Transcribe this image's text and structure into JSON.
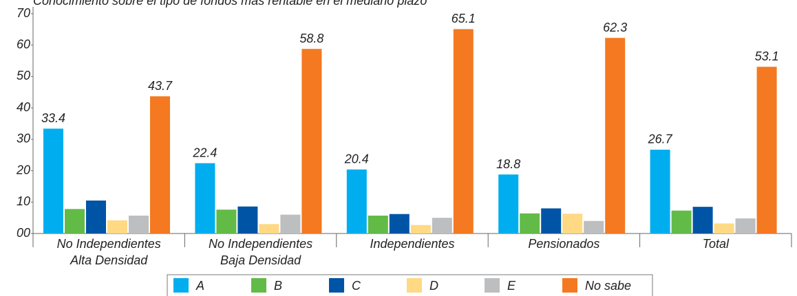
{
  "chart_data": {
    "type": "bar",
    "title": "Conocimiento sobre el tipo de fondos más rentable en el mediano plazo",
    "categories": [
      "No Independientes\nAlta Densidad",
      "No Independientes\nBaja Densidad",
      "Independientes",
      "Pensionados",
      "Total"
    ],
    "series": [
      {
        "name": "A",
        "color": "#00aeef",
        "values": [
          33.4,
          22.4,
          20.4,
          18.8,
          26.7
        ],
        "data_labels": true
      },
      {
        "name": "B",
        "color": "#62bb46",
        "values": [
          7.8,
          7.6,
          5.7,
          6.4,
          7.3
        ]
      },
      {
        "name": "C",
        "color": "#0054a6",
        "values": [
          10.5,
          8.6,
          6.2,
          8.0,
          8.5
        ]
      },
      {
        "name": "D",
        "color": "#ffd983",
        "values": [
          4.2,
          3.0,
          2.7,
          6.3,
          3.2
        ]
      },
      {
        "name": "E",
        "color": "#bcbec0",
        "values": [
          5.7,
          6.0,
          5.0,
          4.0,
          4.8
        ]
      },
      {
        "name": "No sabe",
        "color": "#f47920",
        "values": [
          43.7,
          58.8,
          65.1,
          62.3,
          53.1
        ],
        "data_labels": true
      }
    ],
    "ylim": [
      0,
      70
    ],
    "yticks": [
      {
        "value": 0,
        "label": "00"
      },
      10,
      20,
      30,
      40,
      50,
      60,
      70
    ],
    "legend": "bottom"
  }
}
